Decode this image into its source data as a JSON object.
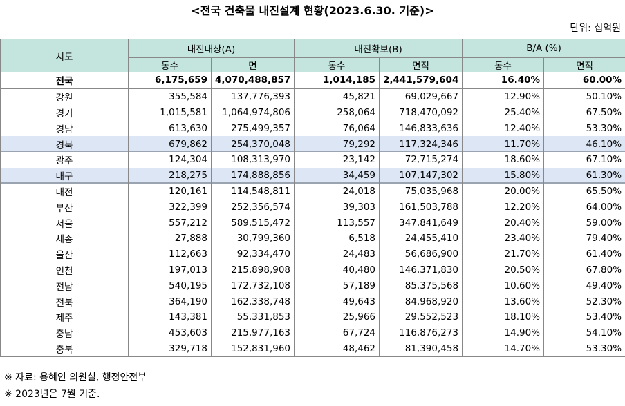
{
  "title": "<전국 건축물 내진설계 현황(2023.6.30. 기준)>",
  "unit": "단위: 십억원",
  "table": {
    "header": {
      "region": "시도",
      "groups": [
        "내진대상(A)",
        "내진확보(B)",
        "B/A (%)"
      ],
      "sub": [
        "동수",
        "면",
        "동수",
        "면적",
        "동수",
        "면적"
      ]
    },
    "rows": [
      [
        "전국",
        "6,175,659",
        "4,070,488,857",
        "1,014,185",
        "2,441,579,604",
        "16.40%",
        "60.00%"
      ],
      [
        "강원",
        "355,584",
        "137,776,393",
        "45,821",
        "69,029,667",
        "12.90%",
        "50.10%"
      ],
      [
        "경기",
        "1,015,581",
        "1,064,974,806",
        "258,064",
        "718,470,092",
        "25.40%",
        "67.50%"
      ],
      [
        "경남",
        "613,630",
        "275,499,357",
        "76,064",
        "146,833,636",
        "12.40%",
        "53.30%"
      ],
      [
        "경북",
        "679,862",
        "254,370,048",
        "79,292",
        "117,324,346",
        "11.70%",
        "46.10%"
      ],
      [
        "광주",
        "124,304",
        "108,313,970",
        "23,142",
        "72,715,274",
        "18.60%",
        "67.10%"
      ],
      [
        "대구",
        "218,275",
        "174,888,856",
        "34,459",
        "107,147,302",
        "15.80%",
        "61.30%"
      ],
      [
        "대전",
        "120,161",
        "114,548,811",
        "24,018",
        "75,035,968",
        "20.00%",
        "65.50%"
      ],
      [
        "부산",
        "322,399",
        "252,356,574",
        "39,303",
        "161,503,788",
        "12.20%",
        "64.00%"
      ],
      [
        "서울",
        "557,212",
        "589,515,472",
        "113,557",
        "347,841,649",
        "20.40%",
        "59.00%"
      ],
      [
        "세종",
        "27,888",
        "30,799,360",
        "6,518",
        "24,455,410",
        "23.40%",
        "79.40%"
      ],
      [
        "울산",
        "112,663",
        "92,334,470",
        "24,483",
        "56,686,900",
        "21.70%",
        "61.40%"
      ],
      [
        "인천",
        "197,013",
        "215,898,908",
        "40,480",
        "146,371,830",
        "20.50%",
        "67.80%"
      ],
      [
        "전남",
        "540,195",
        "172,732,108",
        "57,189",
        "85,375,568",
        "10.60%",
        "49.40%"
      ],
      [
        "전북",
        "364,190",
        "162,338,748",
        "49,643",
        "84,968,920",
        "13.60%",
        "52.30%"
      ],
      [
        "제주",
        "143,381",
        "55,331,853",
        "25,966",
        "29,552,523",
        "18.10%",
        "53.40%"
      ],
      [
        "충남",
        "453,603",
        "215,977,163",
        "67,724",
        "116,876,273",
        "14.90%",
        "54.10%"
      ],
      [
        "충북",
        "329,718",
        "152,831,960",
        "48,462",
        "81,390,458",
        "14.70%",
        "53.30%"
      ]
    ]
  },
  "notes": [
    "※ 자료: 용혜인 의원실, 행정안전부",
    "※ 2023년은 7월 기준."
  ]
}
